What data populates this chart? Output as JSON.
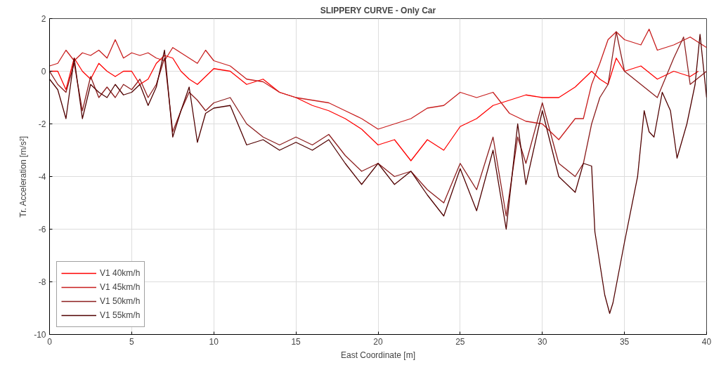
{
  "chart_data": {
    "type": "line",
    "title": "SLIPPERY CURVE - Only Car",
    "xlabel": "East Coordinate [m]",
    "ylabel": "Tr. Acceleration [m/s²]",
    "xlim": [
      0,
      40
    ],
    "ylim": [
      -10,
      2
    ],
    "xticks": [
      0,
      5,
      10,
      15,
      20,
      25,
      30,
      35,
      40
    ],
    "yticks": [
      -10,
      -8,
      -6,
      -4,
      -2,
      0,
      2
    ],
    "grid": true,
    "legend": "bottom left",
    "line_style": "solid",
    "marker": "none",
    "series": [
      {
        "name": "V1 40km/h",
        "color": "#ff0000",
        "x": [
          0,
          0.5,
          1,
          1.5,
          2,
          2.5,
          3,
          3.5,
          4,
          4.5,
          5,
          5.5,
          6,
          6.5,
          7,
          7.5,
          8,
          8.5,
          9,
          9.5,
          10,
          11,
          12,
          13,
          14,
          15,
          16,
          17,
          18,
          19,
          20,
          21,
          22,
          23,
          24,
          25,
          26,
          27,
          28,
          29,
          30,
          31,
          32,
          33,
          33.5,
          34,
          34.5,
          35,
          36,
          37,
          38,
          39,
          39.5
        ],
        "values": [
          0,
          0,
          -0.7,
          0.5,
          0,
          -0.3,
          0.3,
          0,
          -0.2,
          0,
          0,
          -0.5,
          -0.3,
          0.3,
          0.6,
          0.5,
          0,
          -0.3,
          -0.5,
          -0.2,
          0.1,
          0,
          -0.5,
          -0.3,
          -0.8,
          -1,
          -1.3,
          -1.5,
          -1.8,
          -2.2,
          -2.8,
          -2.6,
          -3.4,
          -2.6,
          -3,
          -2.1,
          -1.8,
          -1.3,
          -1.1,
          -0.9,
          -1,
          -1,
          -0.6,
          0,
          -0.3,
          -0.5,
          0.5,
          0,
          0.2,
          -0.3,
          0,
          -0.2,
          0
        ]
      },
      {
        "name": "V1 45km/h",
        "color": "#c81e1e",
        "x": [
          0,
          0.5,
          1,
          1.5,
          2,
          2.5,
          3,
          3.5,
          4,
          4.5,
          5,
          5.5,
          6,
          6.5,
          7,
          7.5,
          8,
          8.5,
          9,
          9.5,
          10,
          11,
          12,
          13,
          14,
          15,
          16,
          17,
          18,
          19,
          20,
          21,
          22,
          23,
          24,
          25,
          26,
          27,
          28,
          29,
          30,
          31,
          32,
          32.5,
          33,
          33.5,
          34,
          34.5,
          35,
          36,
          36.5,
          37,
          38,
          39,
          40
        ],
        "values": [
          0.2,
          0.3,
          0.8,
          0.4,
          0.7,
          0.6,
          0.8,
          0.5,
          1.2,
          0.5,
          0.7,
          0.6,
          0.7,
          0.5,
          0.4,
          0.9,
          0.7,
          0.5,
          0.3,
          0.8,
          0.4,
          0.2,
          -0.3,
          -0.4,
          -0.8,
          -1,
          -1.1,
          -1.2,
          -1.5,
          -1.8,
          -2.2,
          -2,
          -1.8,
          -1.4,
          -1.3,
          -0.8,
          -1,
          -0.8,
          -1.6,
          -1.9,
          -2,
          -2.6,
          -1.8,
          -1.8,
          -0.5,
          0.3,
          1.2,
          1.5,
          1.2,
          1,
          1.6,
          0.8,
          1,
          1.3,
          0.9
        ]
      },
      {
        "name": "V1 50km/h",
        "color": "#8c1e1e",
        "x": [
          0,
          0.5,
          1,
          1.5,
          2,
          2.5,
          3,
          3.5,
          4,
          4.5,
          5,
          5.5,
          6,
          6.5,
          7,
          7.5,
          8,
          8.5,
          9,
          9.5,
          10,
          11,
          12,
          13,
          14,
          15,
          16,
          17,
          18,
          19,
          20,
          21,
          22,
          23,
          24,
          25,
          26,
          27,
          27.8,
          28.5,
          29,
          30,
          31,
          32,
          32.5,
          33,
          33.5,
          34,
          34.5,
          35,
          36,
          37,
          38,
          38.6,
          39,
          40
        ],
        "values": [
          0,
          -0.5,
          -0.8,
          0.3,
          -1.5,
          -0.2,
          -1,
          -0.6,
          -1,
          -0.5,
          -0.7,
          -0.3,
          -1,
          -0.5,
          0.5,
          -2.3,
          -1.5,
          -0.8,
          -1.1,
          -1.5,
          -1.2,
          -1,
          -2,
          -2.5,
          -2.8,
          -2.5,
          -2.8,
          -2.4,
          -3.2,
          -3.8,
          -3.5,
          -4,
          -3.8,
          -4.5,
          -5,
          -3.5,
          -4.5,
          -2.5,
          -5.5,
          -2.5,
          -3.5,
          -1.2,
          -3.5,
          -4,
          -3.5,
          -2,
          -1,
          -0.5,
          1.5,
          0,
          -0.5,
          -1,
          0.5,
          1.3,
          -0.5,
          0
        ]
      },
      {
        "name": "V1 55km/h",
        "color": "#500000",
        "x": [
          0,
          0.5,
          1,
          1.5,
          2,
          2.5,
          3,
          3.5,
          4,
          4.5,
          5,
          5.5,
          6,
          6.5,
          7,
          7.5,
          8,
          8.5,
          9,
          9.5,
          10,
          11,
          12,
          13,
          14,
          15,
          16,
          17,
          18,
          19,
          20,
          21,
          22,
          23,
          24,
          25,
          26,
          27,
          27.8,
          28.5,
          29,
          30,
          31,
          32,
          32.5,
          33,
          33.2,
          33.8,
          34.1,
          34.3,
          35,
          35.8,
          36.2,
          36.5,
          36.8,
          37.3,
          37.8,
          38.2,
          38.8,
          39.3,
          39.6,
          40
        ],
        "values": [
          -0.3,
          -0.7,
          -1.8,
          0.5,
          -1.8,
          -0.5,
          -0.8,
          -1,
          -0.5,
          -0.9,
          -0.8,
          -0.5,
          -1.3,
          -0.6,
          0.8,
          -2.5,
          -1.5,
          -0.6,
          -2.7,
          -1.6,
          -1.4,
          -1.3,
          -2.8,
          -2.6,
          -3,
          -2.7,
          -3,
          -2.6,
          -3.5,
          -4.3,
          -3.5,
          -4.3,
          -3.8,
          -4.7,
          -5.5,
          -3.7,
          -5.3,
          -3,
          -6,
          -2,
          -4.3,
          -1.5,
          -4,
          -4.6,
          -3.5,
          -3.6,
          -6.1,
          -8.5,
          -9.2,
          -8.8,
          -6.5,
          -4,
          -1.5,
          -2.3,
          -2.5,
          -0.8,
          -1.5,
          -3.3,
          -2,
          -0.5,
          1.4,
          -1
        ]
      }
    ]
  }
}
